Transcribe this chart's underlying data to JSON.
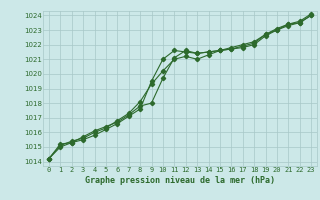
{
  "title": "Graphe pression niveau de la mer (hPa)",
  "xlabel_hours": [
    0,
    1,
    2,
    3,
    4,
    5,
    6,
    7,
    8,
    9,
    10,
    11,
    12,
    13,
    14,
    15,
    16,
    17,
    18,
    19,
    20,
    21,
    22,
    23
  ],
  "line1": [
    1014.2,
    1015.0,
    1015.3,
    1015.5,
    1015.8,
    1016.2,
    1016.6,
    1017.1,
    1017.6,
    1019.5,
    1021.0,
    1021.6,
    1021.5,
    1021.4,
    1021.5,
    1021.6,
    1021.7,
    1021.8,
    1022.0,
    1022.6,
    1023.0,
    1023.3,
    1023.5,
    1024.0
  ],
  "line2": [
    1014.2,
    1015.1,
    1015.4,
    1015.6,
    1016.0,
    1016.3,
    1016.8,
    1017.3,
    1018.1,
    1019.3,
    1020.2,
    1021.0,
    1021.2,
    1021.0,
    1021.3,
    1021.6,
    1021.7,
    1021.9,
    1022.1,
    1022.7,
    1023.1,
    1023.4,
    1023.6,
    1024.1
  ],
  "line3": [
    1014.2,
    1015.2,
    1015.3,
    1015.7,
    1016.1,
    1016.4,
    1016.7,
    1017.2,
    1017.8,
    1018.0,
    1019.7,
    1021.1,
    1021.6,
    1021.4,
    1021.5,
    1021.6,
    1021.8,
    1022.0,
    1022.2,
    1022.7,
    1023.0,
    1023.4,
    1023.5,
    1024.0
  ],
  "ylim_min": 1014,
  "ylim_max": 1024,
  "yticks": [
    1014,
    1015,
    1016,
    1017,
    1018,
    1019,
    1020,
    1021,
    1022,
    1023,
    1024
  ],
  "line_color": "#2d6a2d",
  "bg_color": "#cce8e8",
  "grid_color": "#a8c8c8",
  "marker": "D",
  "marker_size": 2.2,
  "line_width": 0.8,
  "tick_fontsize": 5.0,
  "title_fontsize": 6.0
}
